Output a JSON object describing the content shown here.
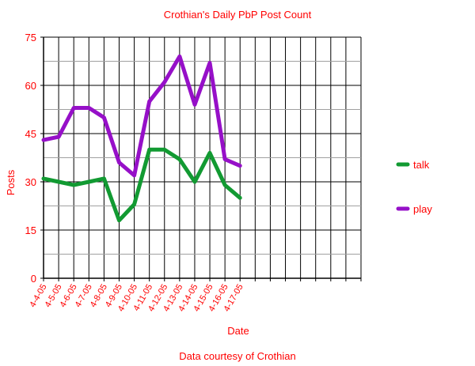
{
  "chart_data": {
    "type": "line",
    "title": "Crothian's Daily PbP Post Count",
    "xlabel": "Date",
    "ylabel": "Posts",
    "footer": "Data courtesy of Crothian",
    "ylim": [
      0,
      75
    ],
    "yticks": [
      "0",
      "15",
      "30",
      "45",
      "60",
      "75"
    ],
    "categories": [
      "4-4-05",
      "4-5-05",
      "4-6-05",
      "4-7-05",
      "4-8-05",
      "4-9-05",
      "4-10-05",
      "4-11-05",
      "4-12-05",
      "4-13-05",
      "4-14-05",
      "4-15-05",
      "4-16-05",
      "4-17-05"
    ],
    "total_x_slots": 22,
    "grid": true,
    "legend_position": "right",
    "text_color": "#ff0000",
    "series": [
      {
        "name": "talk",
        "color": "#129a32",
        "values": [
          31,
          30,
          29,
          30,
          31,
          18,
          23,
          40,
          40,
          37,
          30,
          39,
          29,
          25
        ]
      },
      {
        "name": "play",
        "color": "#9610c8",
        "values": [
          43,
          44,
          53,
          53,
          50,
          36,
          32,
          55,
          61,
          69,
          54,
          67,
          37,
          35
        ]
      }
    ]
  }
}
